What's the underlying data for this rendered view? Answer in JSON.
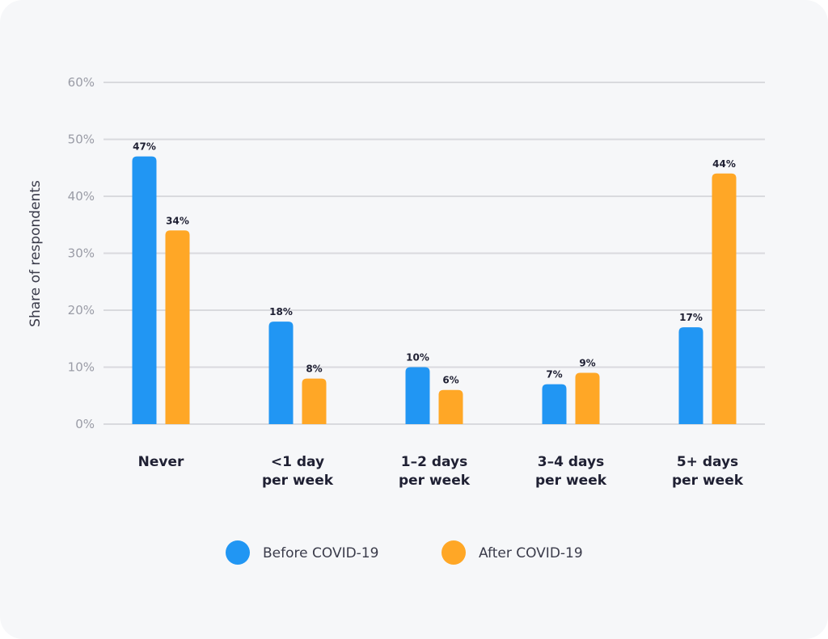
{
  "chart_data": {
    "type": "bar",
    "ylabel": "Share of respondents",
    "xlabel": "",
    "ylim": [
      0,
      60
    ],
    "yticks": [
      "0%",
      "10%",
      "20%",
      "30%",
      "40%",
      "50%",
      "60%"
    ],
    "grid": true,
    "legend_placement": "bottom",
    "categories": [
      [
        "Never"
      ],
      [
        "<1 day",
        "per week"
      ],
      [
        "1–2 days",
        "per week"
      ],
      [
        "3–4 days",
        "per week"
      ],
      [
        "5+ days",
        "per week"
      ]
    ],
    "series": [
      {
        "name": "Before COVID-19",
        "color": "#2196f3",
        "values": [
          47,
          18,
          10,
          7,
          17
        ],
        "labels": [
          "47%",
          "18%",
          "10%",
          "7%",
          "17%"
        ]
      },
      {
        "name": "After COVID-19",
        "color": "#ffa726",
        "values": [
          34,
          8,
          6,
          9,
          44
        ],
        "labels": [
          "34%",
          "8%",
          "6%",
          "9%",
          "44%"
        ]
      }
    ]
  }
}
